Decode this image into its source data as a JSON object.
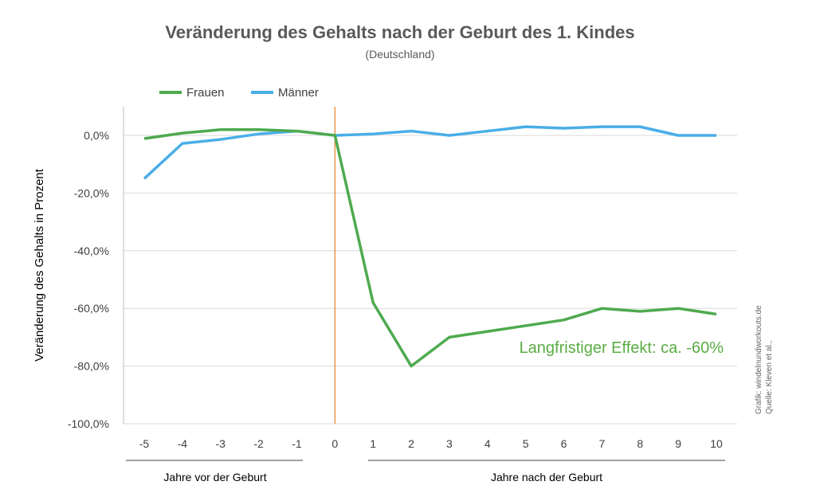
{
  "chart_data": {
    "type": "line",
    "title": "Veränderung des Gehalts nach der Geburt des 1. Kindes",
    "subtitle": "(Deutschland)",
    "ylabel": "Veränderung des Gehalts in Prozent",
    "x": [
      -5,
      -4,
      -3,
      -2,
      -1,
      0,
      1,
      2,
      3,
      4,
      5,
      6,
      7,
      8,
      9,
      10
    ],
    "x_tick_labels": [
      "-5",
      "-4",
      "-3",
      "-2",
      "-1",
      "0",
      "1",
      "2",
      "3",
      "4",
      "5",
      "6",
      "7",
      "8",
      "9",
      "10"
    ],
    "y_ticks": [
      0,
      -20,
      -40,
      -60,
      -80,
      -100
    ],
    "y_tick_labels": [
      "0,0%",
      "-20,0%",
      "-40,0%",
      "-60,0%",
      "-80,0%",
      "-100,0%"
    ],
    "ylim": [
      -100,
      10
    ],
    "grid": true,
    "legend_position": "top-left",
    "series": [
      {
        "name": "Frauen",
        "color": "#4eaa4e",
        "values": [
          -1.1,
          0.8,
          2,
          2,
          1.5,
          0,
          -58,
          -80,
          -70,
          -68,
          -66,
          -64,
          -60,
          -61,
          -60,
          -62
        ]
      },
      {
        "name": "Männer",
        "color": "#4aaee8",
        "values": [
          -15,
          -2.8,
          -1.4,
          0.5,
          1.5,
          0,
          0.5,
          1.5,
          0,
          1.5,
          3,
          2.5,
          3,
          3,
          0,
          0
        ]
      }
    ],
    "event_line": {
      "x": 0,
      "color": "#e8964a"
    },
    "annotation": "Langfristiger Effekt: ca. -60%",
    "group_labels": [
      "Jahre vor der Geburt",
      "Jahre nach der Geburt"
    ],
    "source_lines": [
      "Grafik: windelnundworkouts.de",
      "Quelle: Kleven et al.,"
    ]
  }
}
